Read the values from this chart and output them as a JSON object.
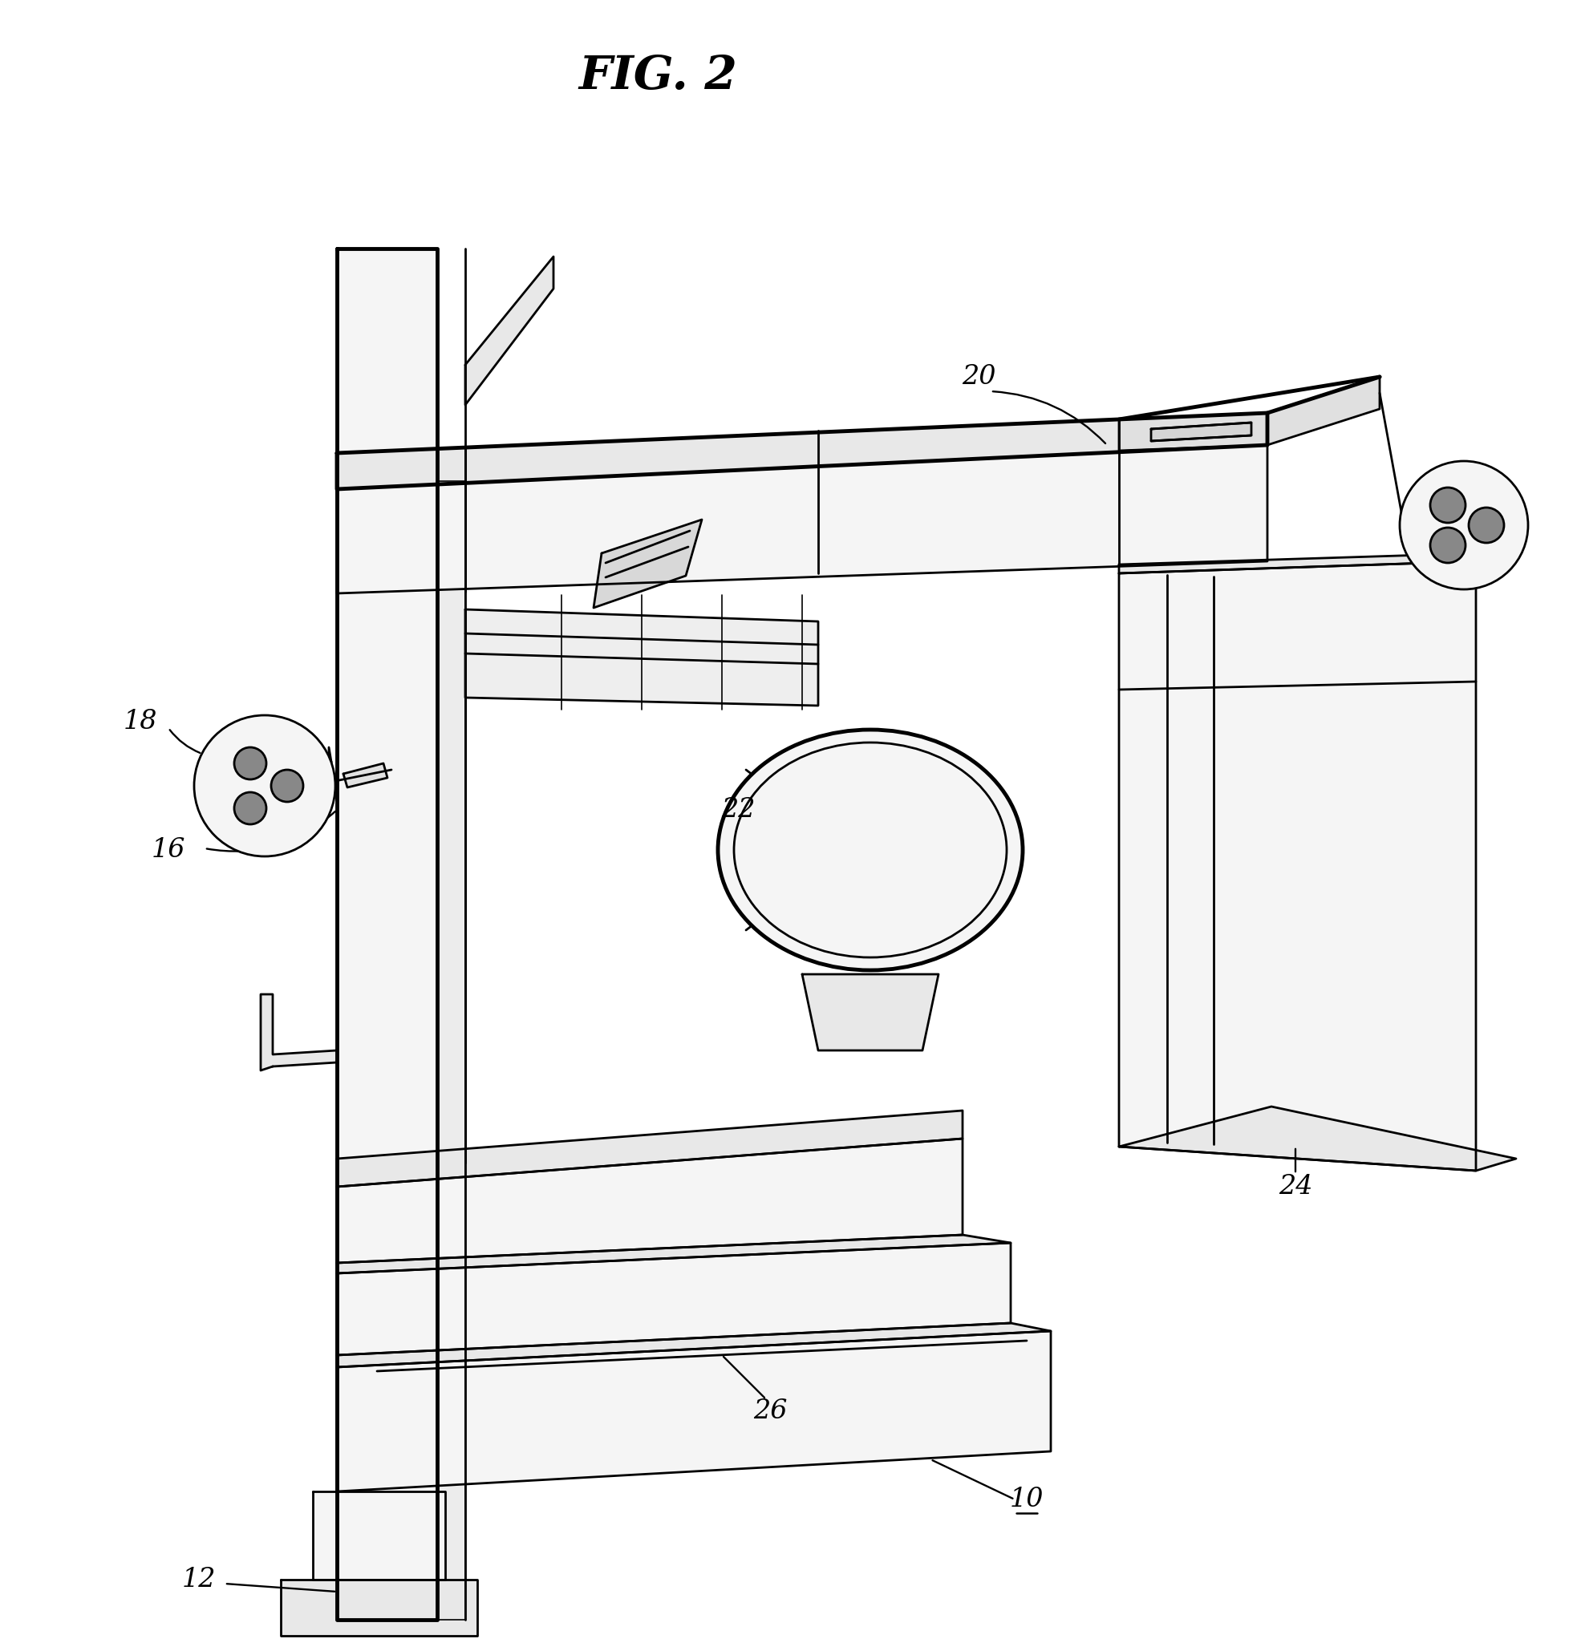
{
  "title": "FIG. 2",
  "bg_color": "#ffffff",
  "line_color": "#000000",
  "lw": 2.0,
  "lw_thick": 3.5,
  "lw_thin": 1.2,
  "label_fontsize": 24,
  "fill_light": "#f5f5f5",
  "fill_mid": "#e8e8e8",
  "fill_dark": "#d8d8d8",
  "hole_color": "#888888"
}
